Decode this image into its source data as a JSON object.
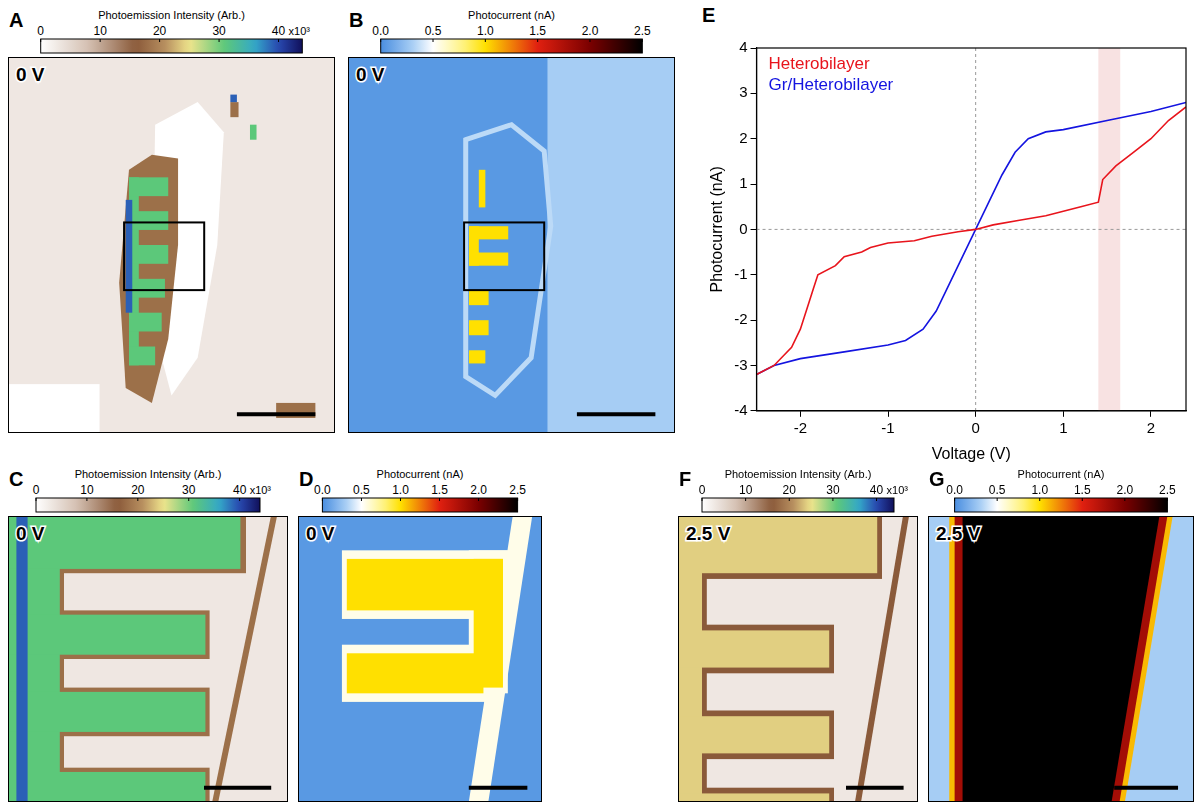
{
  "chart_data": [
    {
      "panel": "A",
      "type": "map",
      "label": "0 V",
      "colorbar": {
        "title": "Photoemission Intensity (Arb.)",
        "range": [
          0,
          44
        ],
        "ticks": [
          0,
          10,
          20,
          30,
          40
        ],
        "multiplier": "x10³"
      },
      "region_values": [
        3,
        0,
        18,
        31,
        39
      ]
    },
    {
      "panel": "B",
      "type": "map",
      "label": "0 V",
      "colorbar": {
        "title": "Photocurrent (nA)",
        "range": [
          0,
          2.5
        ],
        "ticks": [
          {
            "value": 0,
            "label": "0.0"
          },
          0.5,
          {
            "value": 1,
            "label": "1.0"
          },
          1.5,
          {
            "value": 2,
            "label": "2.0"
          },
          2.5
        ]
      },
      "region_values": [
        0.05,
        0.3,
        0.35,
        1.0
      ]
    },
    {
      "panel": "C",
      "type": "map",
      "label": "0 V",
      "colorbar": {
        "title": "Photoemission Intensity (Arb.)",
        "range": [
          0,
          44
        ],
        "ticks": [
          0,
          10,
          20,
          30,
          40
        ],
        "multiplier": "x10³"
      },
      "region_values": [
        3,
        18,
        31,
        39
      ]
    },
    {
      "panel": "D",
      "type": "map",
      "label": "0 V",
      "colorbar": {
        "title": "Photocurrent (nA)",
        "range": [
          0,
          2.5
        ],
        "ticks": [
          {
            "value": 0,
            "label": "0.0"
          },
          0.5,
          {
            "value": 1,
            "label": "1.0"
          },
          1.5,
          {
            "value": 2,
            "label": "2.0"
          },
          2.5
        ]
      },
      "region_values": [
        0.05,
        0.55,
        1.0
      ]
    },
    {
      "panel": "E",
      "type": "line",
      "x_label": "Voltage (V)",
      "y_label": "Photocurrent (nA)",
      "xlim": [
        -2.5,
        2.4
      ],
      "ylim": [
        -4,
        4
      ],
      "xticks": [
        -2,
        -1,
        0,
        1,
        2
      ],
      "yticks": [
        -4,
        -3,
        -2,
        -1,
        0,
        1,
        2,
        3,
        4
      ],
      "grid": false,
      "legend": "upper left",
      "shaded_x_range": [
        1.4,
        1.65
      ],
      "reference_lines": {
        "x": 0,
        "y": 0
      },
      "series": [
        {
          "name": "Heterobilayer",
          "color": "#e8141c",
          "x": [
            -2.5,
            -2.3,
            -2.1,
            -2.0,
            -1.9,
            -1.85,
            -1.8,
            -1.6,
            -1.5,
            -1.3,
            -1.2,
            -1.0,
            -0.7,
            -0.5,
            -0.2,
            0,
            0.2,
            0.5,
            0.8,
            1.0,
            1.2,
            1.4,
            1.45,
            1.6,
            1.8,
            2.0,
            2.2,
            2.4
          ],
          "values": [
            -3.2,
            -3.0,
            -2.6,
            -2.2,
            -1.6,
            -1.3,
            -1.0,
            -0.8,
            -0.6,
            -0.5,
            -0.4,
            -0.3,
            -0.25,
            -0.15,
            -0.05,
            0,
            0.1,
            0.2,
            0.3,
            0.4,
            0.5,
            0.6,
            1.1,
            1.4,
            1.7,
            2.0,
            2.4,
            2.7
          ]
        },
        {
          "name": "Gr/Heterobilayer",
          "color": "#1414e0",
          "x": [
            -2.5,
            -2.3,
            -2.0,
            -1.5,
            -1.0,
            -0.8,
            -0.6,
            -0.45,
            -0.3,
            -0.15,
            0,
            0.15,
            0.3,
            0.45,
            0.6,
            0.8,
            1.0,
            1.5,
            2.0,
            2.4
          ],
          "values": [
            -3.2,
            -3.0,
            -2.85,
            -2.7,
            -2.55,
            -2.45,
            -2.2,
            -1.8,
            -1.2,
            -0.6,
            0,
            0.6,
            1.2,
            1.7,
            2.0,
            2.15,
            2.2,
            2.4,
            2.6,
            2.8
          ]
        }
      ]
    },
    {
      "panel": "F",
      "type": "map",
      "label": "2.5 V",
      "colorbar": {
        "title": "Photoemission Intensity (Arb.)",
        "range": [
          0,
          44
        ],
        "ticks": [
          0,
          10,
          20,
          30,
          40
        ],
        "multiplier": "x10³"
      },
      "region_values": [
        3,
        16,
        24
      ]
    },
    {
      "panel": "G",
      "type": "map",
      "label": "2.5 V",
      "colorbar": {
        "title": "Photocurrent (nA)",
        "range": [
          0,
          2.5
        ],
        "ticks": [
          {
            "value": 0,
            "label": "0.0"
          },
          0.5,
          {
            "value": 1,
            "label": "1.0"
          },
          1.5,
          {
            "value": 2,
            "label": "2.0"
          },
          2.5
        ]
      },
      "region_values": [
        0.3,
        1.1,
        1.8,
        2.5
      ]
    }
  ]
}
